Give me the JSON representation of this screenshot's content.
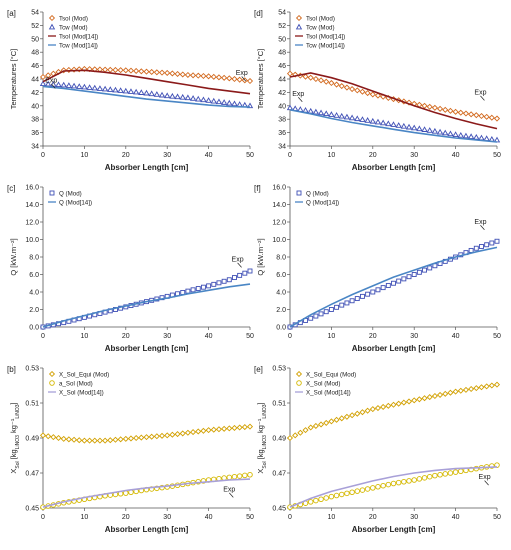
{
  "figure": {
    "panel_labels": [
      "[a]",
      "[d]",
      "[c]",
      "[f]",
      "[b]",
      "[e]"
    ]
  },
  "chart_data": [
    {
      "panel": "[a]",
      "type": "line",
      "xlabel": "Absorber Length [cm]",
      "ylabel": "Temperatures [°C]",
      "xlim": [
        0,
        50
      ],
      "ylim": [
        34,
        54
      ],
      "xticks": [
        "0",
        "10",
        "20",
        "30",
        "40",
        "50"
      ],
      "yticks": [
        "34",
        "36",
        "38",
        "40",
        "42",
        "44",
        "46",
        "48",
        "50",
        "52",
        "54"
      ],
      "grid": false,
      "legend_position": "top-left",
      "x": [
        0,
        5,
        10,
        15,
        20,
        25,
        30,
        35,
        40,
        45,
        50
      ],
      "series": [
        {
          "name": "Tsol (Mod)",
          "color": "#d2691e",
          "marker": "diamond",
          "values": [
            44.3,
            45.3,
            45.5,
            45.4,
            45.3,
            45.1,
            44.9,
            44.6,
            44.4,
            44.1,
            43.7
          ]
        },
        {
          "name": "Tcw (Mod)",
          "color": "#3f4fb5",
          "marker": "triangle",
          "values": [
            43.3,
            43.1,
            42.8,
            42.5,
            42.2,
            41.9,
            41.5,
            41.2,
            40.8,
            40.4,
            40.0
          ]
        },
        {
          "name": "Tsol (Mod[14])",
          "color": "#8b1a1a",
          "marker": "line",
          "values": [
            43.6,
            45.2,
            45.3,
            45.0,
            44.6,
            44.1,
            43.6,
            43.1,
            42.6,
            42.2,
            41.8
          ]
        },
        {
          "name": "Tcw (Mod[14])",
          "color": "#4a86c5",
          "marker": "line",
          "values": [
            42.9,
            42.6,
            42.2,
            41.8,
            41.4,
            41.0,
            40.7,
            40.4,
            40.1,
            39.9,
            39.8
          ]
        }
      ],
      "annotations": [
        {
          "text": "Exp",
          "x": 2,
          "y": 43.5
        },
        {
          "text": "Exp",
          "x": 48,
          "y": 44.6
        }
      ]
    },
    {
      "panel": "[d]",
      "type": "line",
      "xlabel": "Absorber Length [cm]",
      "ylabel": "Temperatures [°C]",
      "xlim": [
        0,
        50
      ],
      "ylim": [
        34,
        54
      ],
      "xticks": [
        "0",
        "10",
        "20",
        "30",
        "40",
        "50"
      ],
      "yticks": [
        "34",
        "36",
        "38",
        "40",
        "42",
        "44",
        "46",
        "48",
        "50",
        "52",
        "54"
      ],
      "grid": false,
      "legend_position": "top-right",
      "x": [
        0,
        5,
        10,
        15,
        20,
        25,
        30,
        35,
        40,
        45,
        50
      ],
      "series": [
        {
          "name": "Tsol (Mod)",
          "color": "#d2691e",
          "marker": "diamond",
          "values": [
            44.8,
            44.2,
            43.4,
            42.5,
            41.7,
            41.0,
            40.3,
            39.7,
            39.1,
            38.6,
            38.1
          ]
        },
        {
          "name": "Tcw (Mod)",
          "color": "#3f4fb5",
          "marker": "triangle",
          "values": [
            39.7,
            39.2,
            38.7,
            38.2,
            37.7,
            37.2,
            36.7,
            36.2,
            35.7,
            35.3,
            34.9
          ]
        },
        {
          "name": "Tsol (Mod[14])",
          "color": "#8b1a1a",
          "marker": "line",
          "values": [
            44.3,
            44.9,
            44.2,
            43.3,
            42.2,
            41.1,
            40.0,
            39.0,
            38.1,
            37.3,
            36.6
          ]
        },
        {
          "name": "Tcw (Mod[14])",
          "color": "#4a86c5",
          "marker": "line",
          "values": [
            39.4,
            38.8,
            38.1,
            37.5,
            37.0,
            36.5,
            36.0,
            35.6,
            35.2,
            34.9,
            34.6
          ]
        }
      ],
      "annotations": [
        {
          "text": "Exp",
          "x": 2,
          "y": 41.5
        },
        {
          "text": "Exp",
          "x": 46,
          "y": 41.7
        }
      ]
    },
    {
      "panel": "[c]",
      "type": "line",
      "xlabel": "Absorber Length [cm]",
      "ylabel": "Q [kW.m⁻²]",
      "xlim": [
        0,
        50
      ],
      "ylim": [
        0,
        16
      ],
      "xticks": [
        "0",
        "10",
        "20",
        "30",
        "40",
        "50"
      ],
      "yticks": [
        "0.0",
        "2.0",
        "4.0",
        "6.0",
        "8.0",
        "10.0",
        "12.0",
        "14.0",
        "16.0"
      ],
      "grid": false,
      "legend_position": "top-left",
      "x": [
        0,
        5,
        10,
        15,
        20,
        25,
        30,
        35,
        40,
        45,
        50
      ],
      "series": [
        {
          "name": "Q (Mod)",
          "color": "#3f4fb5",
          "marker": "square",
          "values": [
            0.0,
            0.5,
            1.1,
            1.7,
            2.3,
            2.9,
            3.5,
            4.1,
            4.7,
            5.4,
            6.4
          ]
        },
        {
          "name": "Q (Mod[14])",
          "color": "#4a86c5",
          "marker": "line",
          "values": [
            0.0,
            0.7,
            1.3,
            1.9,
            2.4,
            2.9,
            3.3,
            3.8,
            4.2,
            4.6,
            4.9
          ]
        }
      ],
      "annotations": [
        {
          "text": "Exp",
          "x": 47,
          "y": 7.5
        }
      ]
    },
    {
      "panel": "[f]",
      "type": "line",
      "xlabel": "Absorber Length [cm]",
      "ylabel": "Q [kW.m⁻²]",
      "xlim": [
        0,
        50
      ],
      "ylim": [
        0,
        16
      ],
      "xticks": [
        "0",
        "10",
        "20",
        "30",
        "40",
        "50"
      ],
      "yticks": [
        "0.0",
        "2.0",
        "4.0",
        "6.0",
        "8.0",
        "10.0",
        "12.0",
        "14.0",
        "16.0"
      ],
      "grid": false,
      "legend_position": "top-left",
      "x": [
        0,
        5,
        10,
        15,
        20,
        25,
        30,
        35,
        40,
        45,
        50
      ],
      "series": [
        {
          "name": "Q (Mod)",
          "color": "#3f4fb5",
          "marker": "square",
          "values": [
            0.0,
            1.0,
            2.0,
            3.0,
            4.0,
            5.0,
            6.0,
            7.0,
            8.0,
            9.0,
            9.8
          ]
        },
        {
          "name": "Q (Mod[14])",
          "color": "#4a86c5",
          "marker": "line",
          "values": [
            0.0,
            1.4,
            2.6,
            3.7,
            4.7,
            5.7,
            6.5,
            7.3,
            8.0,
            8.6,
            9.1
          ]
        }
      ],
      "annotations": [
        {
          "text": "Exp",
          "x": 46,
          "y": 11.8
        }
      ]
    },
    {
      "panel": "[b]",
      "type": "line",
      "xlabel": "Absorber Length [cm]",
      "ylabel": "X_Sol [kg_LiNO3 kg⁻¹_LiNO3]",
      "xlim": [
        0,
        50
      ],
      "ylim": [
        0.45,
        0.53
      ],
      "xticks": [
        "0",
        "10",
        "20",
        "30",
        "40",
        "50"
      ],
      "yticks": [
        "0.45",
        "0.47",
        "0.49",
        "0.51",
        "0.53"
      ],
      "grid": false,
      "legend_position": "top-left",
      "x": [
        0,
        5,
        10,
        15,
        20,
        25,
        30,
        35,
        40,
        45,
        50
      ],
      "series": [
        {
          "name": "X_Sol_Equi (Mod)",
          "color": "#d2a000",
          "marker": "diamond",
          "values": [
            0.4915,
            0.4895,
            0.4885,
            0.4885,
            0.4895,
            0.4905,
            0.4915,
            0.493,
            0.4945,
            0.4955,
            0.4965
          ]
        },
        {
          "name": "a_Sol (Mod)",
          "color": "#d4b800",
          "marker": "circle",
          "values": [
            0.4505,
            0.453,
            0.455,
            0.457,
            0.4585,
            0.4605,
            0.462,
            0.464,
            0.466,
            0.4675,
            0.469
          ]
        },
        {
          "name": "X_Sol (Mod[14])",
          "color": "#a8a0d8",
          "marker": "line",
          "values": [
            0.4505,
            0.4535,
            0.456,
            0.458,
            0.46,
            0.4615,
            0.4625,
            0.464,
            0.465,
            0.466,
            0.4665
          ]
        }
      ],
      "annotations": [
        {
          "text": "Exp",
          "x": 45,
          "y": 0.4595
        }
      ]
    },
    {
      "panel": "[e]",
      "type": "line",
      "xlabel": "Absorber Length [cm]",
      "ylabel": "X_Sol [kg_LiNO3 kg⁻¹_LiNO3]",
      "xlim": [
        0,
        50
      ],
      "ylim": [
        0.45,
        0.53
      ],
      "xticks": [
        "0",
        "10",
        "20",
        "30",
        "40",
        "50"
      ],
      "yticks": [
        "0.45",
        "0.47",
        "0.49",
        "0.51",
        "0.53"
      ],
      "grid": false,
      "legend_position": "top-left",
      "x": [
        0,
        5,
        10,
        15,
        20,
        25,
        30,
        35,
        40,
        45,
        50
      ],
      "series": [
        {
          "name": "X_Sol_Equi (Mod)",
          "color": "#d2a000",
          "marker": "diamond",
          "values": [
            0.49,
            0.496,
            0.4995,
            0.503,
            0.5065,
            0.509,
            0.5115,
            0.514,
            0.5165,
            0.5185,
            0.5205
          ]
        },
        {
          "name": "X_Sol (Mod)",
          "color": "#d4b800",
          "marker": "circle",
          "values": [
            0.4505,
            0.4535,
            0.4565,
            0.459,
            0.4615,
            0.464,
            0.466,
            0.4685,
            0.4705,
            0.4725,
            0.4745
          ]
        },
        {
          "name": "X_Sol (Mod[14])",
          "color": "#a8a0d8",
          "marker": "line",
          "values": [
            0.4505,
            0.4555,
            0.4595,
            0.4625,
            0.4655,
            0.468,
            0.47,
            0.4715,
            0.4725,
            0.473,
            0.4735
          ]
        }
      ],
      "annotations": [
        {
          "text": "Exp",
          "x": 47,
          "y": 0.4665
        }
      ]
    }
  ]
}
